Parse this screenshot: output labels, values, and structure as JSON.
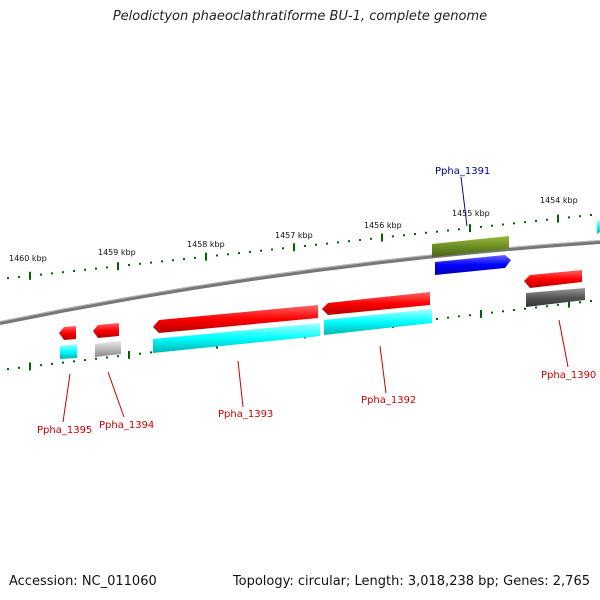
{
  "title": "Pelodictyon phaeoclathratiforme BU-1, complete genome",
  "footer": {
    "accession": "Accession: NC_011060",
    "summary": "Topology: circular; Length: 3,018,238 bp; Genes: 2,765"
  },
  "scale_labels": [
    "1460 kbp",
    "1459 kbp",
    "1458 kbp",
    "1457 kbp",
    "1456 kbp",
    "1455 kbp",
    "1454 kbp"
  ],
  "genes": [
    {
      "label": "Ppha_1391",
      "color": "#000099"
    },
    {
      "label": "Ppha_1390",
      "color": "#cc0000"
    },
    {
      "label": "Ppha_1392",
      "color": "#cc0000"
    },
    {
      "label": "Ppha_1393",
      "color": "#cc0000"
    },
    {
      "label": "Ppha_1394",
      "color": "#cc0000"
    },
    {
      "label": "Ppha_1395",
      "color": "#cc0000"
    }
  ],
  "colors": {
    "cds_red": "#ff0000",
    "cds_cyan": "#00ffff",
    "olive": "#6b8e23",
    "blue": "#0000ff",
    "gray": "#555555",
    "light_gray": "#bbbbbb",
    "tick_green": "#006400",
    "backbone": "#777777"
  }
}
